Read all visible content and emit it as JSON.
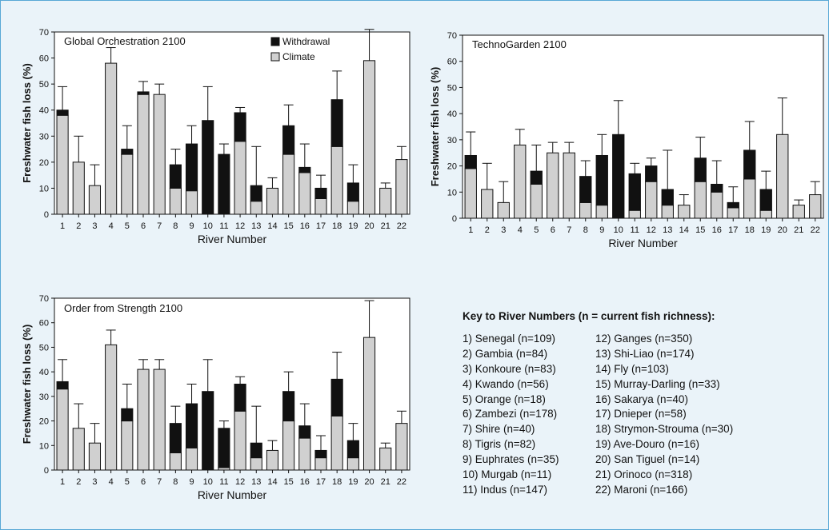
{
  "colors": {
    "frame_background": "#eaf3f9",
    "frame_border": "#58a8d6",
    "withdrawal": "#111111",
    "climate": "#d0d0d0"
  },
  "chart_data": [
    {
      "type": "bar",
      "stacked": true,
      "panel": "global",
      "title": "Global Orchestration 2100",
      "xlabel": "River Number",
      "ylabel": "Freshwater fish loss (%)",
      "ylim": [
        0,
        70
      ],
      "yticks": [
        0,
        10,
        20,
        30,
        40,
        50,
        60,
        70
      ],
      "grid": false,
      "legend_position": "top-center",
      "legend": [
        "Withdrawal",
        "Climate"
      ],
      "categories": [
        "1",
        "2",
        "3",
        "4",
        "5",
        "6",
        "7",
        "8",
        "9",
        "10",
        "11",
        "12",
        "13",
        "14",
        "15",
        "16",
        "17",
        "18",
        "19",
        "20",
        "21",
        "22"
      ],
      "series": [
        {
          "name": "Climate",
          "values": [
            38,
            20,
            11,
            58,
            23,
            46,
            46,
            10,
            9,
            0,
            0,
            28,
            5,
            10,
            23,
            16,
            6,
            26,
            5,
            59,
            10,
            21
          ]
        },
        {
          "name": "Withdrawal",
          "values": [
            2,
            0,
            0,
            0,
            2,
            1,
            0,
            9,
            18,
            36,
            23,
            11,
            6,
            0,
            11,
            2,
            4,
            18,
            7,
            0,
            0,
            0
          ]
        }
      ],
      "error_top": [
        49,
        30,
        19,
        64,
        34,
        51,
        50,
        25,
        34,
        49,
        27,
        41,
        26,
        14,
        42,
        27,
        15,
        55,
        19,
        71,
        12,
        26
      ]
    },
    {
      "type": "bar",
      "stacked": true,
      "panel": "techno",
      "title": "TechnoGarden 2100",
      "xlabel": "River Number",
      "ylabel": "Freshwater fish loss (%)",
      "ylim": [
        0,
        70
      ],
      "yticks": [
        0,
        10,
        20,
        30,
        40,
        50,
        60,
        70
      ],
      "grid": false,
      "categories": [
        "1",
        "2",
        "3",
        "4",
        "5",
        "6",
        "7",
        "8",
        "9",
        "10",
        "11",
        "12",
        "13",
        "14",
        "15",
        "16",
        "17",
        "18",
        "19",
        "20",
        "21",
        "22"
      ],
      "series": [
        {
          "values": [
            19,
            11,
            6,
            28,
            13,
            25,
            25,
            6,
            5,
            0,
            3,
            14,
            5,
            5,
            14,
            10,
            4,
            15,
            3,
            32,
            5,
            9
          ]
        },
        {
          "values": [
            5,
            0,
            0,
            0,
            5,
            0,
            0,
            10,
            19,
            32,
            14,
            6,
            6,
            0,
            9,
            3,
            2,
            11,
            8,
            0,
            0,
            0
          ]
        }
      ],
      "error_top": [
        33,
        21,
        14,
        34,
        28,
        29,
        29,
        22,
        32,
        45,
        21,
        23,
        26,
        9,
        31,
        22,
        12,
        37,
        18,
        46,
        7,
        14
      ]
    },
    {
      "type": "bar",
      "stacked": true,
      "panel": "order",
      "title": "Order from Strength 2100",
      "xlabel": "River Number",
      "ylabel": "Freshwater fish loss (%)",
      "ylim": [
        0,
        70
      ],
      "yticks": [
        0,
        10,
        20,
        30,
        40,
        50,
        60,
        70
      ],
      "grid": false,
      "categories": [
        "1",
        "2",
        "3",
        "4",
        "5",
        "6",
        "7",
        "8",
        "9",
        "10",
        "11",
        "12",
        "13",
        "14",
        "15",
        "16",
        "17",
        "18",
        "19",
        "20",
        "21",
        "22"
      ],
      "series": [
        {
          "values": [
            33,
            17,
            11,
            51,
            20,
            41,
            41,
            7,
            9,
            0,
            1,
            24,
            5,
            8,
            20,
            13,
            5,
            22,
            5,
            54,
            9,
            19
          ]
        },
        {
          "values": [
            3,
            0,
            0,
            0,
            5,
            0,
            0,
            12,
            18,
            32,
            16,
            11,
            6,
            0,
            12,
            5,
            3,
            15,
            7,
            0,
            0,
            0
          ]
        }
      ],
      "error_top": [
        45,
        27,
        19,
        57,
        35,
        45,
        45,
        26,
        35,
        45,
        20,
        38,
        26,
        12,
        40,
        27,
        14,
        48,
        19,
        69,
        11,
        24
      ]
    }
  ],
  "key": {
    "title": "Key to River Numbers  (n = current fish richness):",
    "left": [
      "1) Senegal (n=109)",
      "2) Gambia (n=84)",
      "3) Konkoure (n=83)",
      "4) Kwando (n=56)",
      "5) Orange (n=18)",
      "6) Zambezi (n=178)",
      "7) Shire (n=40)",
      "8) Tigris (n=82)",
      "9) Euphrates (n=35)",
      "10) Murgab (n=11)",
      "11) Indus (n=147)"
    ],
    "right": [
      "12) Ganges (n=350)",
      "13) Shi-Liao (n=174)",
      "14) Fly (n=103)",
      "15) Murray-Darling (n=33)",
      "16) Sakarya (n=40)",
      "17) Dnieper (n=58)",
      "18) Strymon-Strouma (n=30)",
      "19) Ave-Douro (n=16)",
      "20) San Tiguel (n=14)",
      "21) Orinoco (n=318)",
      "22) Maroni (n=166)"
    ]
  }
}
